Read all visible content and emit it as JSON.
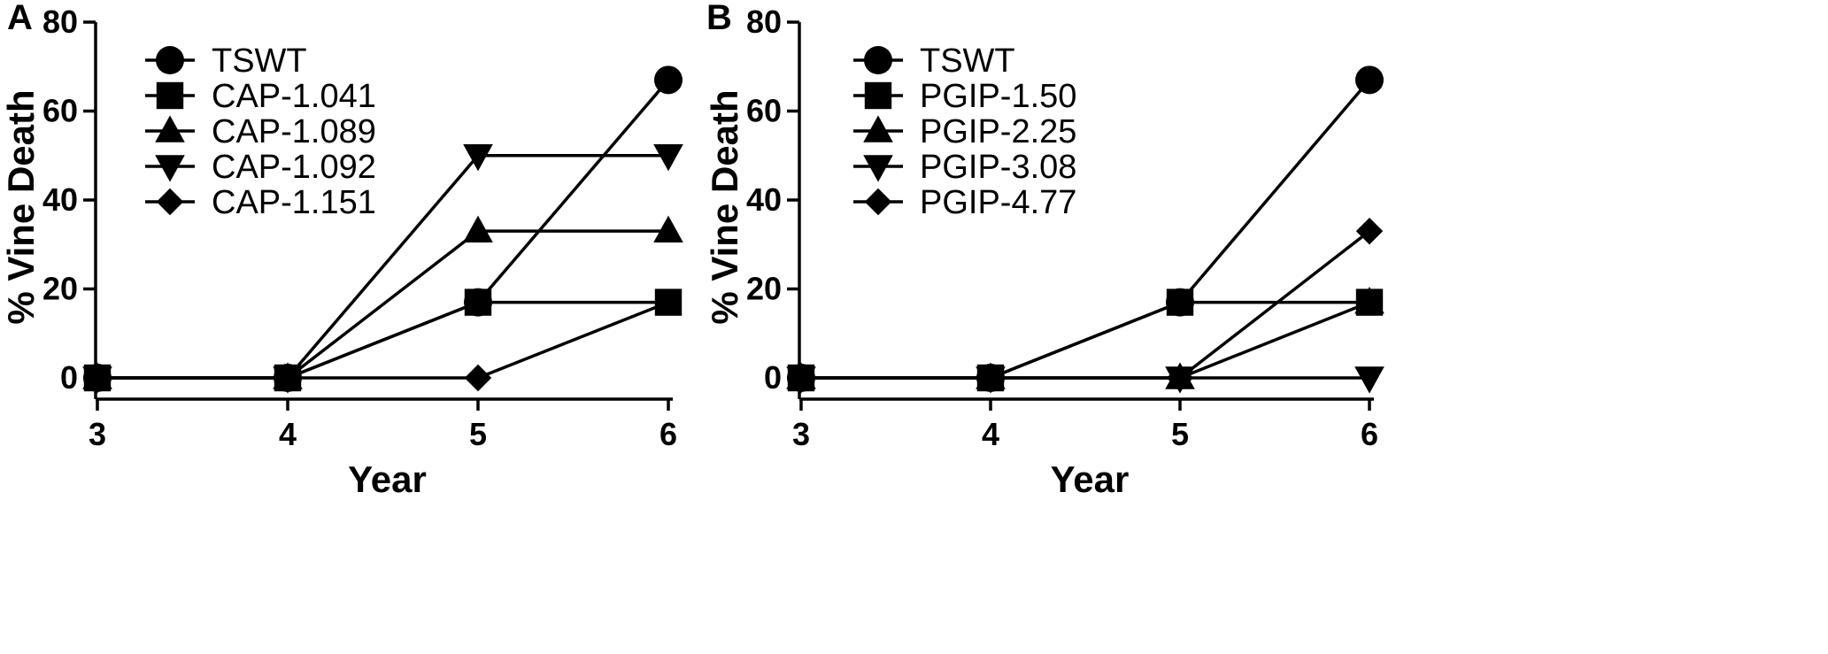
{
  "chart_data": [
    {
      "panel": "A",
      "type": "line",
      "xlabel": "Year",
      "ylabel": "% Vine Death",
      "xlim": [
        3,
        6
      ],
      "ylim": [
        0,
        80
      ],
      "x_ticks": [
        "3",
        "4",
        "5",
        "6"
      ],
      "y_ticks": [
        "0",
        "20",
        "40",
        "60",
        "80"
      ],
      "legend_position": "top-left",
      "series": [
        {
          "name": "TSWT",
          "marker": "circle",
          "x": [
            3,
            4,
            5,
            6
          ],
          "y": [
            0,
            0,
            17,
            67
          ]
        },
        {
          "name": "CAP-1.041",
          "marker": "square",
          "x": [
            3,
            4,
            5,
            6
          ],
          "y": [
            0,
            0,
            17,
            17
          ]
        },
        {
          "name": "CAP-1.089",
          "marker": "triangle-up",
          "x": [
            3,
            4,
            5,
            6
          ],
          "y": [
            0,
            0,
            33,
            33
          ]
        },
        {
          "name": "CAP-1.092",
          "marker": "triangle-down",
          "x": [
            3,
            4,
            5,
            6
          ],
          "y": [
            0,
            0,
            50,
            50
          ]
        },
        {
          "name": "CAP-1.151",
          "marker": "diamond",
          "x": [
            3,
            4,
            5,
            6
          ],
          "y": [
            0,
            0,
            0,
            17
          ]
        }
      ]
    },
    {
      "panel": "B",
      "type": "line",
      "xlabel": "Year",
      "ylabel": "% Vine Death",
      "xlim": [
        3,
        6
      ],
      "ylim": [
        0,
        80
      ],
      "x_ticks": [
        "3",
        "4",
        "5",
        "6"
      ],
      "y_ticks": [
        "0",
        "20",
        "40",
        "60",
        "80"
      ],
      "legend_position": "top-left",
      "series": [
        {
          "name": "TSWT",
          "marker": "circle",
          "x": [
            3,
            4,
            5,
            6
          ],
          "y": [
            0,
            0,
            17,
            67
          ]
        },
        {
          "name": "PGIP-1.50",
          "marker": "square",
          "x": [
            3,
            4,
            5,
            6
          ],
          "y": [
            0,
            0,
            17,
            17
          ]
        },
        {
          "name": "PGIP-2.25",
          "marker": "triangle-up",
          "x": [
            3,
            4,
            5,
            6
          ],
          "y": [
            0,
            0,
            0,
            17
          ]
        },
        {
          "name": "PGIP-3.08",
          "marker": "triangle-down",
          "x": [
            3,
            4,
            5,
            6
          ],
          "y": [
            0,
            0,
            0,
            0
          ]
        },
        {
          "name": "PGIP-4.77",
          "marker": "diamond",
          "x": [
            3,
            4,
            5,
            6
          ],
          "y": [
            0,
            0,
            0,
            33
          ]
        }
      ]
    }
  ]
}
